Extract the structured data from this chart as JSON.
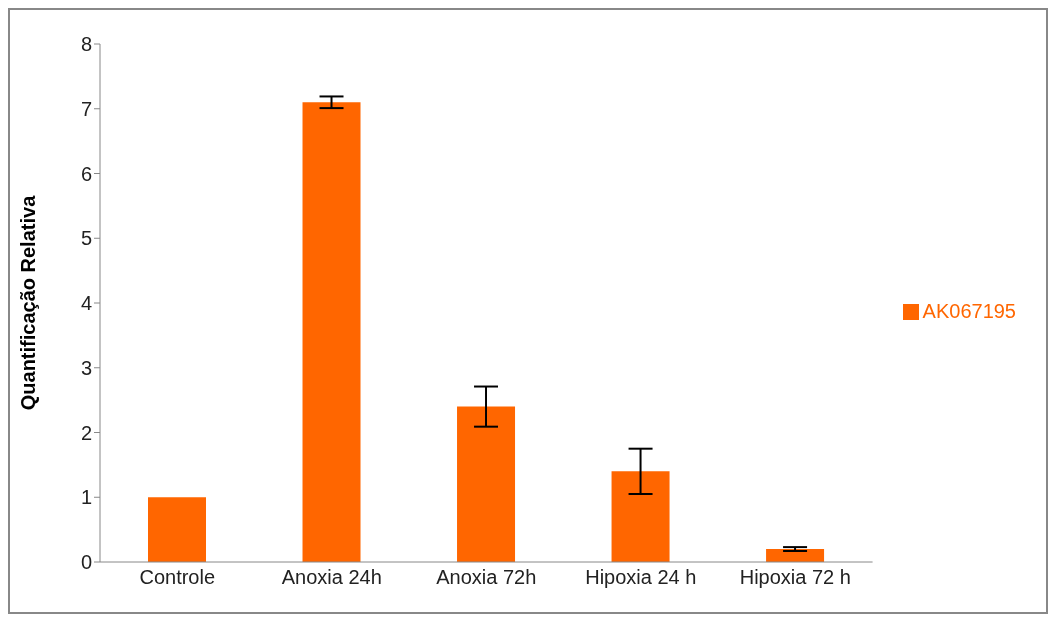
{
  "chart_data": {
    "type": "bar",
    "ylabel": "Quantificação Relativa",
    "categories": [
      "Controle",
      "Anoxia 24h",
      "Anoxia 72h",
      "Hipoxia 24 h",
      "Hipoxia 72 h"
    ],
    "series": [
      {
        "name": "AK067195",
        "color": "#ff6600",
        "values": [
          1.0,
          7.1,
          2.4,
          1.4,
          0.2
        ],
        "errors": [
          null,
          0.09,
          0.31,
          0.35,
          0.03
        ]
      }
    ],
    "ylim": [
      0,
      8
    ],
    "yticks": [
      0,
      1,
      2,
      3,
      4,
      5,
      6,
      7,
      8
    ],
    "grid": false,
    "legend": "right"
  }
}
